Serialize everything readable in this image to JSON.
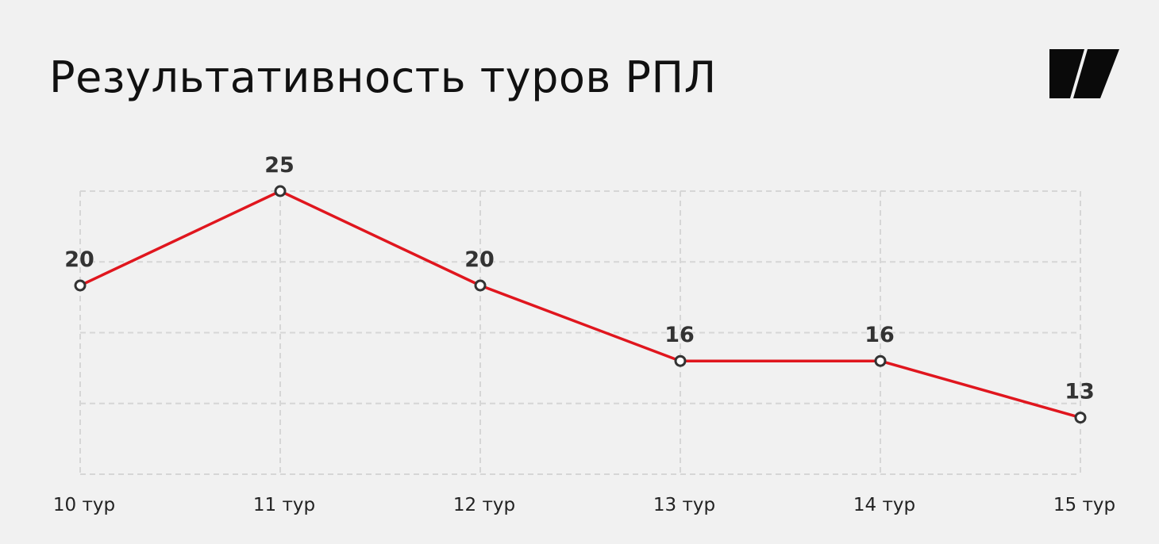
{
  "chart_data": {
    "type": "line",
    "title": "Результативность туров РПЛ",
    "categories": [
      "10 тур",
      "11 тур",
      "12 тур",
      "13 тур",
      "14 тур",
      "15 тур"
    ],
    "values": [
      20,
      25,
      20,
      16,
      16,
      13
    ],
    "color": "#e0161e",
    "ylim": [
      10,
      25
    ],
    "yticks": [
      10,
      13.75,
      17.5,
      21.25,
      25
    ],
    "grid": true
  }
}
